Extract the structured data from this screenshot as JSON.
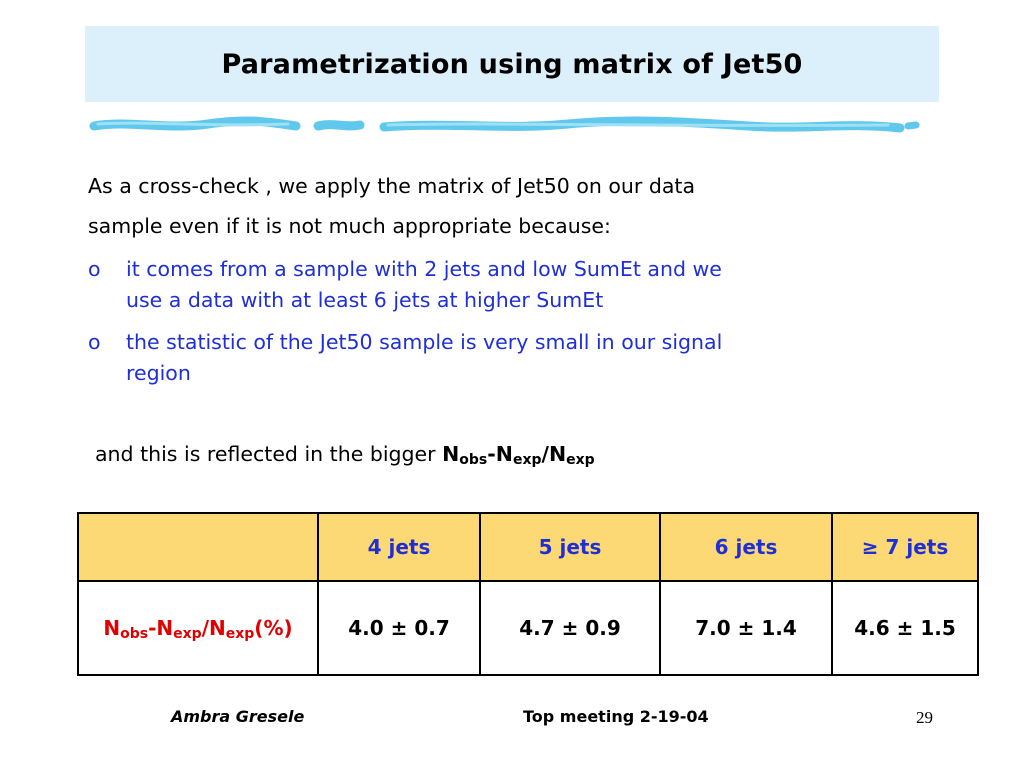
{
  "slide": {
    "title": "Parametrization using matrix of Jet50",
    "intro_line1": "As a cross-check , we apply the matrix of Jet50 on our data",
    "intro_line2": "sample even if it is not much appropriate because:",
    "bullet_mark": "o",
    "bullets": [
      {
        "line1": "it comes from a sample with 2 jets and low SumEt and we",
        "line2": "use a data with at least 6 jets at higher SumEt"
      },
      {
        "line1": "the statistic of the Jet50 sample is very small in our signal",
        "line2": "region"
      }
    ],
    "summary": {
      "text": "and this is reflected in the bigger ",
      "n1": "N",
      "s1": "obs",
      "dash": "-N",
      "s2": "exp",
      "slash": "/N",
      "s3": "exp"
    }
  },
  "table": {
    "headers": [
      "",
      "4 jets",
      "5 jets",
      "6 jets",
      "≥ 7 jets"
    ],
    "row_label": {
      "n1": "N",
      "s1": "obs",
      "dash": "-N",
      "s2": "exp",
      "slash": "/N",
      "s3": "exp",
      "tail": "(%)"
    },
    "values": [
      "4.0 ± 0.7",
      "4.7 ± 0.9",
      "7.0 ± 1.4",
      "4.6 ± 1.5"
    ]
  },
  "footer": {
    "author": "Ambra Gresele",
    "meeting": "Top meeting 2-19-04",
    "page": "29"
  },
  "colors": {
    "title_bg": "#dcf0fb",
    "bullet_text": "#1f2fd6",
    "header_bg": "#fcd975",
    "row_label": "#e00000",
    "wave": "#5fc8ec"
  }
}
